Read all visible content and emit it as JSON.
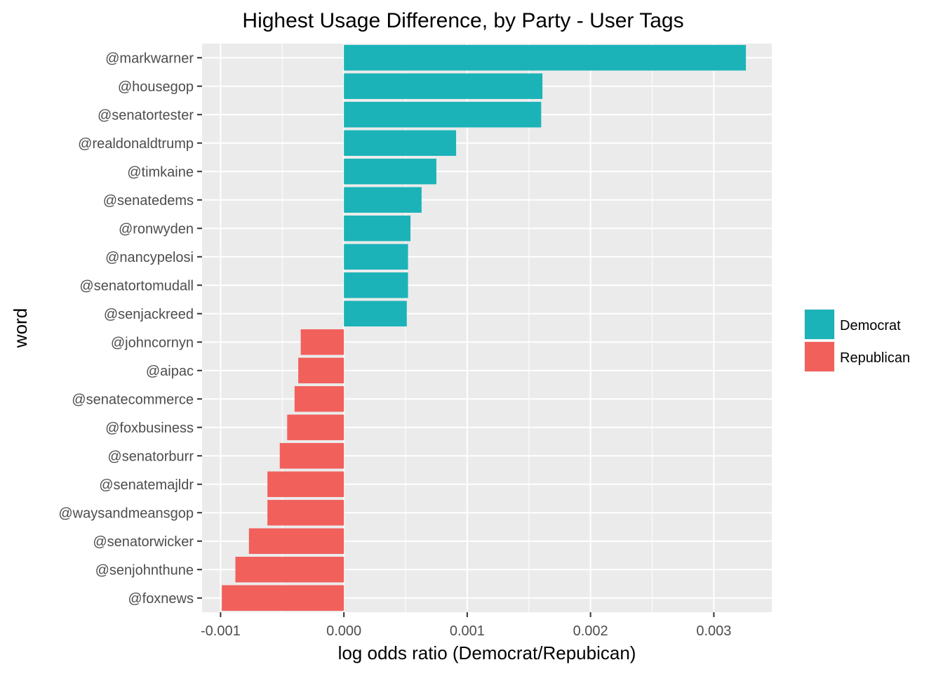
{
  "chart_data": {
    "type": "bar",
    "orientation": "horizontal",
    "title": "Highest Usage Difference, by Party - User Tags",
    "xlabel": "log odds ratio (Democrat/Repubican)",
    "ylabel": "word",
    "xlim": [
      -0.00115,
      0.00347
    ],
    "xticks": [
      -0.001,
      0.0,
      0.001,
      0.002,
      0.003
    ],
    "xtick_labels": [
      "-0.001",
      "0.000",
      "0.001",
      "0.002",
      "0.003"
    ],
    "grid": true,
    "legend_position": "right",
    "series": [
      {
        "name": "Democrat",
        "color": "#1bb3b8"
      },
      {
        "name": "Republican",
        "color": "#f2605c"
      }
    ],
    "bars": [
      {
        "word": "@markwarner",
        "value": 0.00326,
        "party": "Democrat"
      },
      {
        "word": "@housegop",
        "value": 0.00161,
        "party": "Democrat"
      },
      {
        "word": "@senatortester",
        "value": 0.0016,
        "party": "Democrat"
      },
      {
        "word": "@realdonaldtrump",
        "value": 0.00091,
        "party": "Democrat"
      },
      {
        "word": "@timkaine",
        "value": 0.00075,
        "party": "Democrat"
      },
      {
        "word": "@senatedems",
        "value": 0.00063,
        "party": "Democrat"
      },
      {
        "word": "@ronwyden",
        "value": 0.00054,
        "party": "Democrat"
      },
      {
        "word": "@nancypelosi",
        "value": 0.00052,
        "party": "Democrat"
      },
      {
        "word": "@senatortomudall",
        "value": 0.00052,
        "party": "Democrat"
      },
      {
        "word": "@senjackreed",
        "value": 0.00051,
        "party": "Democrat"
      },
      {
        "word": "@johncornyn",
        "value": -0.00035,
        "party": "Republican"
      },
      {
        "word": "@aipac",
        "value": -0.00037,
        "party": "Republican"
      },
      {
        "word": "@senatecommerce",
        "value": -0.0004,
        "party": "Republican"
      },
      {
        "word": "@foxbusiness",
        "value": -0.00046,
        "party": "Republican"
      },
      {
        "word": "@senatorburr",
        "value": -0.00052,
        "party": "Republican"
      },
      {
        "word": "@senatemajldr",
        "value": -0.00062,
        "party": "Republican"
      },
      {
        "word": "@waysandmeansgop",
        "value": -0.00062,
        "party": "Republican"
      },
      {
        "word": "@senatorwicker",
        "value": -0.00077,
        "party": "Republican"
      },
      {
        "word": "@senjohnthune",
        "value": -0.00088,
        "party": "Republican"
      },
      {
        "word": "@foxnews",
        "value": -0.00099,
        "party": "Republican"
      }
    ]
  }
}
